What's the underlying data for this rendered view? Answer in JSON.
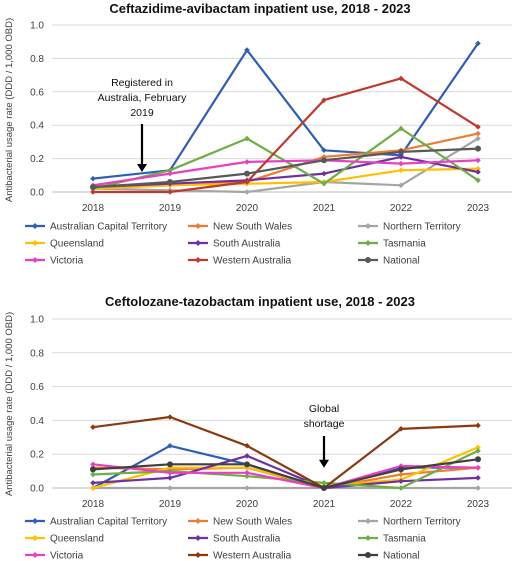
{
  "chart_data": [
    {
      "type": "line",
      "title": "Ceftazidime-avibactam inpatient use, 2018 - 2023",
      "ylabel": "Antibacterial usage rate (DDD / 1,000 OBD)",
      "xlabel": "",
      "categories": [
        "2018",
        "2019",
        "2020",
        "2021",
        "2022",
        "2023"
      ],
      "ylim": [
        0,
        1.0
      ],
      "yticks": [
        "0.0",
        "0.2",
        "0.4",
        "0.6",
        "0.8",
        "1.0"
      ],
      "grid": true,
      "legend_position": "bottom",
      "annotations": [
        {
          "text_lines": [
            "Registered in",
            "Australia, February",
            "2019"
          ],
          "x": "2018.7",
          "arrow_tip_y": 0.12
        }
      ],
      "series": [
        {
          "name": "Australian Capital Territory",
          "color": "#2E5EB8",
          "values": [
            0.08,
            0.13,
            0.85,
            0.25,
            0.22,
            0.89
          ]
        },
        {
          "name": "New South Wales",
          "color": "#ED7D31",
          "values": [
            0.02,
            0.04,
            0.06,
            0.21,
            0.25,
            0.35
          ]
        },
        {
          "name": "Northern Territory",
          "color": "#A5A5A5",
          "values": [
            0.02,
            0.01,
            0.0,
            0.06,
            0.04,
            0.32
          ]
        },
        {
          "name": "Queensland",
          "color": "#FFC000",
          "values": [
            0.02,
            0.04,
            0.05,
            0.06,
            0.13,
            0.14
          ]
        },
        {
          "name": "South Australia",
          "color": "#7030A0",
          "values": [
            0.03,
            0.05,
            0.07,
            0.11,
            0.21,
            0.12
          ]
        },
        {
          "name": "Tasmania",
          "color": "#70AD47",
          "values": [
            0.02,
            0.13,
            0.32,
            0.05,
            0.38,
            0.07
          ]
        },
        {
          "name": "Victoria",
          "color": "#E83FC4",
          "values": [
            0.04,
            0.11,
            0.18,
            0.19,
            0.17,
            0.19
          ]
        },
        {
          "name": "Western Australia",
          "color": "#C0392B",
          "values": [
            0.0,
            0.0,
            0.06,
            0.55,
            0.68,
            0.39
          ]
        },
        {
          "name": "National",
          "color": "#595959",
          "values": [
            0.03,
            0.06,
            0.11,
            0.19,
            0.24,
            0.26
          ]
        }
      ]
    },
    {
      "type": "line",
      "title": "Ceftolozane-tazobactam inpatient use, 2018 - 2023",
      "ylabel": "Antibacterial usage rate (DDD / 1,000 OBD)",
      "xlabel": "",
      "categories": [
        "2018",
        "2019",
        "2020",
        "2021",
        "2022",
        "2023"
      ],
      "ylim": [
        0,
        1.0
      ],
      "yticks": [
        "0.0",
        "0.2",
        "0.4",
        "0.6",
        "0.8",
        "1.0"
      ],
      "grid": true,
      "legend_position": "bottom",
      "annotations": [
        {
          "text_lines": [
            "Global",
            "shortage"
          ],
          "x": "2021",
          "arrow_tip_y": 0.12
        }
      ],
      "series": [
        {
          "name": "Australian Capital Territory",
          "color": "#2E5EB8",
          "values": [
            0.0,
            0.25,
            0.14,
            0.0,
            0.12,
            0.12
          ]
        },
        {
          "name": "New South Wales",
          "color": "#ED7D31",
          "values": [
            0.12,
            0.11,
            0.12,
            0.0,
            0.08,
            0.12
          ]
        },
        {
          "name": "Northern Territory",
          "color": "#A5A5A5",
          "values": [
            0.0,
            0.0,
            0.0,
            0.0,
            0.0,
            0.0
          ]
        },
        {
          "name": "Queensland",
          "color": "#FFC000",
          "values": [
            0.0,
            0.12,
            0.12,
            0.01,
            0.05,
            0.24
          ]
        },
        {
          "name": "South Australia",
          "color": "#7030A0",
          "values": [
            0.03,
            0.06,
            0.19,
            0.0,
            0.04,
            0.06
          ]
        },
        {
          "name": "Tasmania",
          "color": "#70AD47",
          "values": [
            0.08,
            0.1,
            0.07,
            0.03,
            0.0,
            0.22
          ]
        },
        {
          "name": "Victoria",
          "color": "#E83FC4",
          "values": [
            0.14,
            0.09,
            0.09,
            0.0,
            0.13,
            0.12
          ]
        },
        {
          "name": "Western Australia",
          "color": "#8B3A0F",
          "values": [
            0.36,
            0.42,
            0.25,
            0.0,
            0.35,
            0.37
          ]
        },
        {
          "name": "National",
          "color": "#404040",
          "values": [
            0.11,
            0.14,
            0.14,
            0.0,
            0.11,
            0.17
          ]
        }
      ]
    }
  ]
}
